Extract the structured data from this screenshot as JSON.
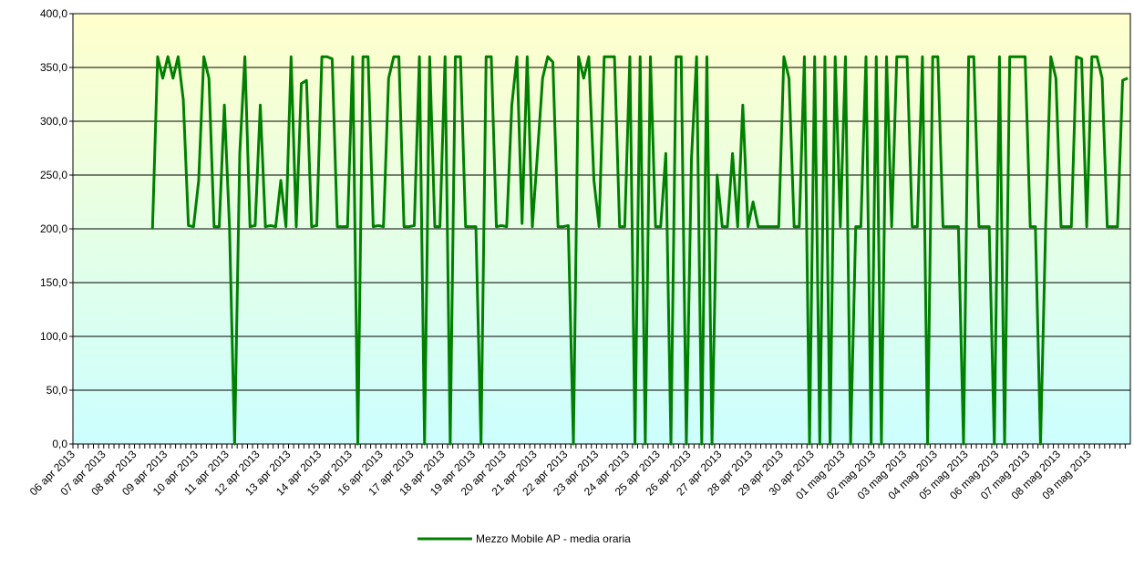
{
  "chart_data": {
    "type": "line",
    "categories": [
      "06 apr 2013",
      null,
      null,
      null,
      null,
      null,
      "07 apr 2013",
      null,
      null,
      null,
      null,
      null,
      "08 apr 2013",
      null,
      null,
      null,
      null,
      null,
      "09 apr 2013",
      null,
      null,
      null,
      null,
      null,
      "10 apr 2013",
      null,
      null,
      null,
      null,
      null,
      "11 apr 2013",
      null,
      null,
      null,
      null,
      null,
      "12 apr 2013",
      null,
      null,
      null,
      null,
      null,
      "13 apr 2013",
      null,
      null,
      null,
      null,
      null,
      "14 apr 2013",
      null,
      null,
      null,
      null,
      null,
      "15 apr 2013",
      null,
      null,
      null,
      null,
      null,
      "16 apr 2013",
      null,
      null,
      null,
      null,
      null,
      "17 apr 2013",
      null,
      null,
      null,
      null,
      null,
      "18 apr 2013",
      null,
      null,
      null,
      null,
      null,
      "19 apr 2013",
      null,
      null,
      null,
      null,
      null,
      "20 apr 2013",
      null,
      null,
      null,
      null,
      null,
      "21 apr 2013",
      null,
      null,
      null,
      null,
      null,
      "22 apr 2013",
      null,
      null,
      null,
      null,
      null,
      "23 apr 2013",
      null,
      null,
      null,
      null,
      null,
      "24 apr 2013",
      null,
      null,
      null,
      null,
      null,
      "25 apr 2013",
      null,
      null,
      null,
      null,
      null,
      "26 apr 2013",
      null,
      null,
      null,
      null,
      null,
      "27 apr 2013",
      null,
      null,
      null,
      null,
      null,
      "28 apr 2013",
      null,
      null,
      null,
      null,
      null,
      "29 apr 2013",
      null,
      null,
      null,
      null,
      null,
      "30 apr 2013",
      null,
      null,
      null,
      null,
      null,
      "01 mag 2013",
      null,
      null,
      null,
      null,
      null,
      "02 mag 2013",
      null,
      null,
      null,
      null,
      null,
      "03 mag 2013",
      null,
      null,
      null,
      null,
      null,
      "04 mag 2013",
      null,
      null,
      null,
      null,
      null,
      "05 mag 2013",
      null,
      null,
      null,
      null,
      null,
      "06 mag 2013",
      null,
      null,
      null,
      null,
      null,
      "07 mag 2013",
      null,
      null,
      null,
      null,
      null,
      "08 mag 2013",
      null,
      null,
      null,
      null,
      null,
      "09 mag 2013",
      null,
      null,
      null,
      null,
      null,
      null,
      null
    ],
    "series": [
      {
        "name": "Mezzo Mobile AP - media oraria",
        "color": "#008000",
        "values": [
          null,
          null,
          null,
          null,
          null,
          null,
          null,
          null,
          null,
          null,
          null,
          null,
          null,
          null,
          null,
          200,
          360,
          340,
          360,
          340,
          360,
          320,
          203,
          202,
          245,
          360,
          340,
          202,
          202,
          315,
          202,
          0,
          270,
          360,
          202,
          203,
          315,
          202,
          203,
          202,
          245,
          202,
          360,
          202,
          335,
          338,
          202,
          203,
          360,
          360,
          358,
          202,
          202,
          202,
          360,
          0,
          360,
          360,
          202,
          203,
          202,
          340,
          360,
          360,
          202,
          202,
          203,
          360,
          0,
          360,
          202,
          202,
          360,
          0,
          360,
          360,
          202,
          202,
          202,
          0,
          360,
          360,
          202,
          203,
          202,
          315,
          360,
          205,
          360,
          202,
          270,
          340,
          360,
          355,
          202,
          202,
          203,
          0,
          360,
          340,
          360,
          245,
          202,
          360,
          360,
          360,
          202,
          202,
          360,
          0,
          360,
          0,
          360,
          202,
          202,
          270,
          0,
          360,
          360,
          0,
          265,
          360,
          0,
          360,
          0,
          250,
          202,
          202,
          270,
          202,
          315,
          202,
          225,
          202,
          202,
          202,
          202,
          202,
          360,
          340,
          202,
          202,
          360,
          0,
          360,
          0,
          360,
          0,
          360,
          202,
          360,
          0,
          202,
          202,
          360,
          0,
          360,
          0,
          360,
          202,
          360,
          360,
          360,
          202,
          202,
          360,
          0,
          360,
          360,
          202,
          202,
          202,
          202,
          0,
          360,
          360,
          202,
          202,
          202,
          0,
          360,
          0,
          360,
          360,
          360,
          360,
          202,
          202,
          0,
          202,
          360,
          340,
          202,
          202,
          202,
          360,
          358,
          202,
          360,
          360,
          340,
          202,
          202,
          202,
          338,
          340
        ]
      }
    ],
    "ylim": [
      0,
      400
    ],
    "yticks": [
      {
        "value": 0,
        "label": "0,0"
      },
      {
        "value": 50,
        "label": "50,0"
      },
      {
        "value": 100,
        "label": "100,0"
      },
      {
        "value": 150,
        "label": "150,0"
      },
      {
        "value": 200,
        "label": "200,0"
      },
      {
        "value": 250,
        "label": "250,0"
      },
      {
        "value": 300,
        "label": "300,0"
      },
      {
        "value": 350,
        "label": "350,0"
      },
      {
        "value": 400,
        "label": "400,0"
      }
    ],
    "grid": true
  }
}
